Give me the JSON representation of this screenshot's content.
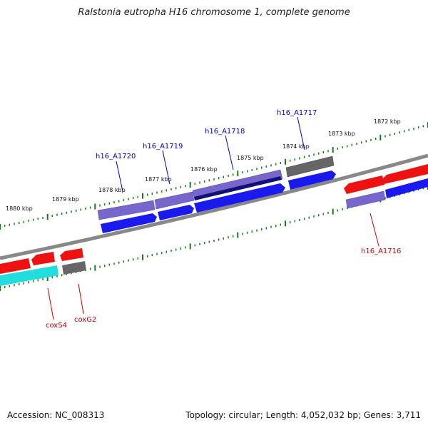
{
  "title": "Ralstonia eutropha H16 chromosome 1, complete genome",
  "footer": {
    "accession": "Accession: NC_008313",
    "topology": "Topology: circular; Length: 4,052,032 bp; Genes: 3,711"
  },
  "colors": {
    "backbone": "#888888",
    "ticks": "#1a7a1a",
    "forward_label": "#0000cc",
    "reverse_label": "#cc0000",
    "gene_blue": "#1a1aee",
    "gene_purple": "#7766cc",
    "gene_navy": "#111177",
    "gene_gray": "#666666",
    "gene_red": "#ee1111",
    "gene_cyan": "#22dddd"
  },
  "scale_labels": [
    "1880 kbp",
    "1879 kbp",
    "1878 kbp",
    "1877 kbp",
    "1876 kbp",
    "1875 kbp",
    "1874 kbp",
    "1873 kbp",
    "1872 kbp"
  ],
  "gene_labels": {
    "h16_A1720": "h16_A1720",
    "h16_A1719": "h16_A1719",
    "h16_A1718": "h16_A1718",
    "h16_A1717": "h16_A1717",
    "h16_A1716": "h16_A1716",
    "coxS4": "coxS4",
    "coxG2": "coxG2"
  }
}
